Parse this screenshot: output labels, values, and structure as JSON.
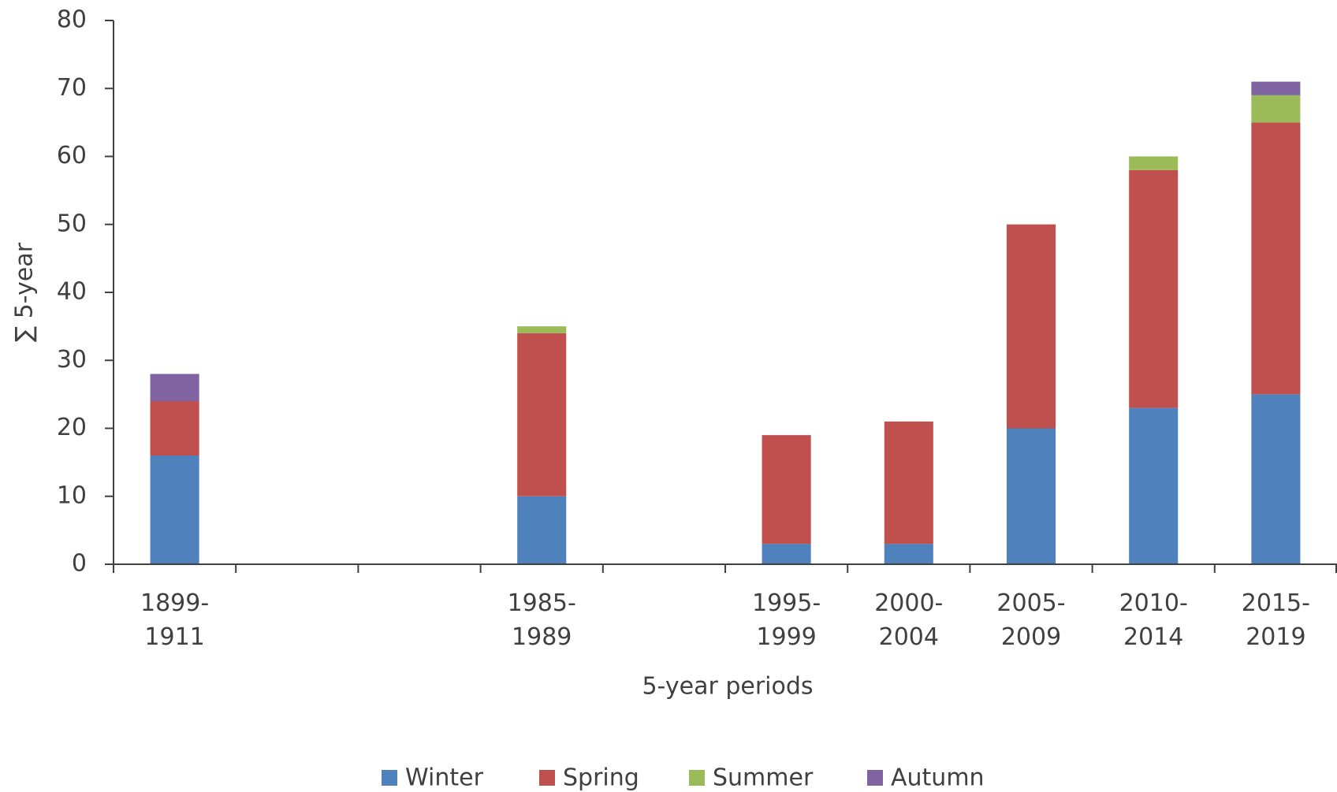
{
  "chart_data": {
    "type": "stacked_bar",
    "xlabel": "5-year periods",
    "ylabel": "∑ 5-year",
    "categories": [
      "1899-1911",
      null,
      null,
      "1985-1989",
      null,
      "1995-1999",
      "2000-2004",
      "2005-2009",
      "2010-2014",
      "2015-2019"
    ],
    "series": [
      {
        "name": "Winter",
        "color": "#4f81bd",
        "values": [
          16,
          null,
          null,
          10,
          null,
          3,
          3,
          20,
          23,
          25
        ]
      },
      {
        "name": "Spring",
        "color": "#c0504d",
        "values": [
          8,
          null,
          null,
          24,
          null,
          16,
          18,
          30,
          35,
          40
        ]
      },
      {
        "name": "Summer",
        "color": "#9bbb59",
        "values": [
          0,
          null,
          null,
          1,
          null,
          0,
          0,
          0,
          2,
          4
        ]
      },
      {
        "name": "Autumn",
        "color": "#8064a2",
        "values": [
          4,
          null,
          null,
          0,
          null,
          0,
          0,
          0,
          0,
          2
        ]
      }
    ],
    "ylim": [
      0,
      80
    ],
    "yticks": [
      0,
      10,
      20,
      30,
      40,
      50,
      60,
      70,
      80
    ],
    "legend": "bottom"
  }
}
